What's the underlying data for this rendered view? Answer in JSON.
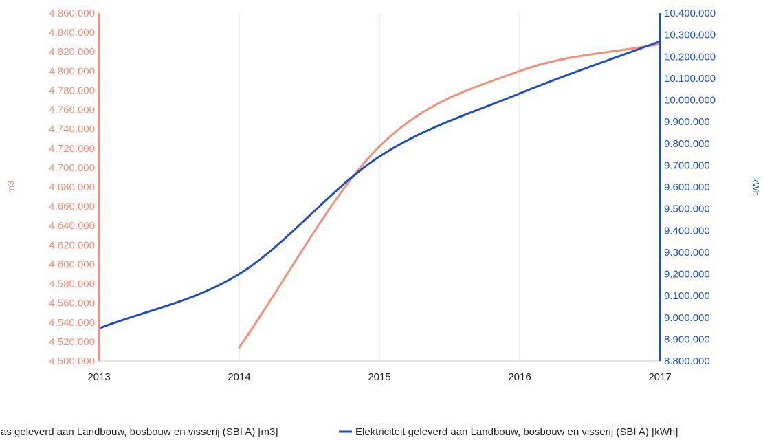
{
  "colors": {
    "gas": "#f4907a",
    "electricity": "#1f4fbf",
    "grid": "#dddddd",
    "text": "#222222"
  },
  "chart_data": {
    "type": "line",
    "x": [
      2013,
      2014,
      2015,
      2016,
      2017
    ],
    "x_tick_labels": [
      "2013",
      "2014",
      "2015",
      "2016",
      "2017"
    ],
    "y_left": {
      "label": "m3",
      "range": [
        4500000,
        4860000
      ],
      "step": 20000,
      "tick_labels": [
        "4.500.000",
        "4.520.000",
        "4.540.000",
        "4.560.000",
        "4.580.000",
        "4.600.000",
        "4.620.000",
        "4.640.000",
        "4.660.000",
        "4.680.000",
        "4.700.000",
        "4.720.000",
        "4.740.000",
        "4.760.000",
        "4.780.000",
        "4.800.000",
        "4.820.000",
        "4.840.000",
        "4.860.000"
      ]
    },
    "y_right": {
      "label": "kWh",
      "range": [
        8800000,
        10400000
      ],
      "step": 100000,
      "tick_labels": [
        "8.800.000",
        "8.900.000",
        "9.000.000",
        "9.100.000",
        "9.200.000",
        "9.300.000",
        "9.400.000",
        "9.500.000",
        "9.600.000",
        "9.700.000",
        "9.800.000",
        "9.900.000",
        "10.000.000",
        "10.100.000",
        "10.200.000",
        "10.300.000",
        "10.400.000"
      ]
    },
    "series": [
      {
        "name": "as geleverd aan Landbouw, bosbouw en visserij (SBI A) [m3]",
        "axis": "left",
        "color": "#f4907a",
        "x": [
          2014,
          2015,
          2016,
          2017
        ],
        "values": [
          4514000,
          4722000,
          4800000,
          4828000
        ]
      },
      {
        "name": "Elektriciteit geleverd aan Landbouw, bosbouw en visserij (SBI A) [kWh]",
        "axis": "right",
        "color": "#1f4fbf",
        "x": [
          2013,
          2014,
          2015,
          2016,
          2017
        ],
        "values": [
          8950000,
          9200000,
          9740000,
          10030000,
          10270000
        ]
      }
    ],
    "grid": true,
    "legend_position": "bottom"
  }
}
